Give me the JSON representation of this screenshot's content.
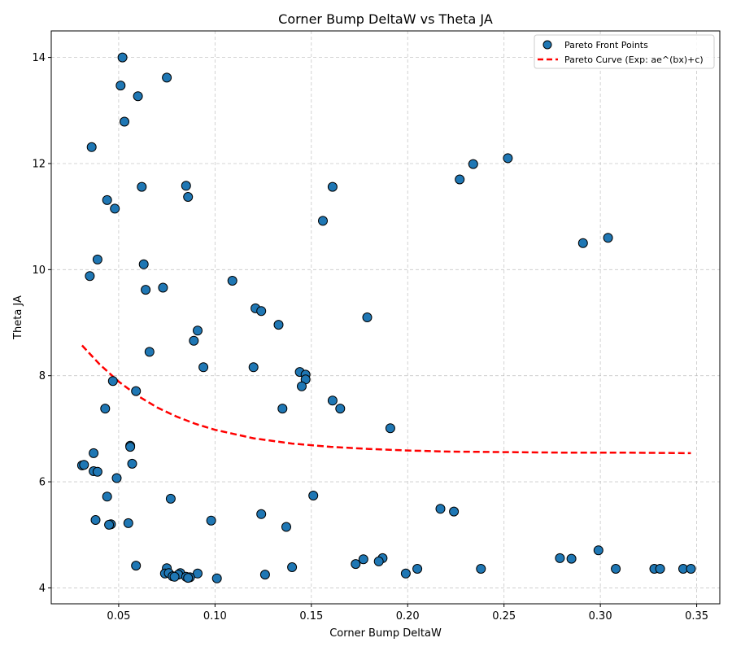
{
  "chart_data": {
    "type": "scatter",
    "title": "Corner Bump DeltaW vs Theta JA",
    "xlabel": "Corner Bump DeltaW",
    "ylabel": "Theta JA",
    "xlim": [
      0.015,
      0.362
    ],
    "ylim": [
      3.7,
      14.5
    ],
    "xticks": [
      0.05,
      0.1,
      0.15,
      0.2,
      0.25,
      0.3,
      0.35
    ],
    "xtick_labels": [
      "0.05",
      "0.10",
      "0.15",
      "0.20",
      "0.25",
      "0.30",
      "0.35"
    ],
    "yticks": [
      4,
      6,
      8,
      10,
      12,
      14
    ],
    "ytick_labels": [
      "4",
      "6",
      "8",
      "10",
      "12",
      "14"
    ],
    "grid": true,
    "legend_position": "top-right",
    "colors": {
      "points": "#1f77b4",
      "curve": "#ff0000"
    },
    "series": [
      {
        "name": "Pareto Front Points",
        "kind": "scatter",
        "points": [
          [
            0.052,
            14.0
          ],
          [
            0.075,
            13.62
          ],
          [
            0.051,
            13.47
          ],
          [
            0.06,
            13.27
          ],
          [
            0.053,
            12.79
          ],
          [
            0.036,
            12.31
          ],
          [
            0.252,
            12.1
          ],
          [
            0.234,
            11.99
          ],
          [
            0.227,
            11.7
          ],
          [
            0.062,
            11.56
          ],
          [
            0.085,
            11.58
          ],
          [
            0.161,
            11.56
          ],
          [
            0.086,
            11.37
          ],
          [
            0.044,
            11.31
          ],
          [
            0.048,
            11.15
          ],
          [
            0.156,
            10.92
          ],
          [
            0.304,
            10.6
          ],
          [
            0.291,
            10.5
          ],
          [
            0.039,
            10.19
          ],
          [
            0.063,
            10.1
          ],
          [
            0.035,
            9.88
          ],
          [
            0.109,
            9.79
          ],
          [
            0.073,
            9.66
          ],
          [
            0.064,
            9.62
          ],
          [
            0.121,
            9.27
          ],
          [
            0.124,
            9.22
          ],
          [
            0.179,
            9.1
          ],
          [
            0.133,
            8.96
          ],
          [
            0.091,
            8.85
          ],
          [
            0.089,
            8.66
          ],
          [
            0.066,
            8.45
          ],
          [
            0.094,
            8.16
          ],
          [
            0.12,
            8.16
          ],
          [
            0.144,
            8.07
          ],
          [
            0.147,
            8.02
          ],
          [
            0.147,
            7.93
          ],
          [
            0.047,
            7.9
          ],
          [
            0.145,
            7.8
          ],
          [
            0.059,
            7.71
          ],
          [
            0.161,
            7.53
          ],
          [
            0.043,
            7.38
          ],
          [
            0.135,
            7.38
          ],
          [
            0.165,
            7.38
          ],
          [
            0.191,
            7.01
          ],
          [
            0.056,
            6.68
          ],
          [
            0.056,
            6.66
          ],
          [
            0.037,
            6.54
          ],
          [
            0.057,
            6.34
          ],
          [
            0.031,
            6.31
          ],
          [
            0.032,
            6.32
          ],
          [
            0.037,
            6.2
          ],
          [
            0.039,
            6.19
          ],
          [
            0.049,
            6.07
          ],
          [
            0.044,
            5.72
          ],
          [
            0.151,
            5.74
          ],
          [
            0.077,
            5.68
          ],
          [
            0.217,
            5.49
          ],
          [
            0.224,
            5.44
          ],
          [
            0.124,
            5.39
          ],
          [
            0.038,
            5.28
          ],
          [
            0.098,
            5.27
          ],
          [
            0.055,
            5.22
          ],
          [
            0.046,
            5.2
          ],
          [
            0.045,
            5.19
          ],
          [
            0.137,
            5.15
          ],
          [
            0.299,
            4.71
          ],
          [
            0.279,
            4.56
          ],
          [
            0.187,
            4.56
          ],
          [
            0.285,
            4.55
          ],
          [
            0.177,
            4.54
          ],
          [
            0.185,
            4.5
          ],
          [
            0.173,
            4.45
          ],
          [
            0.059,
            4.42
          ],
          [
            0.14,
            4.39
          ],
          [
            0.075,
            4.37
          ],
          [
            0.205,
            4.36
          ],
          [
            0.238,
            4.36
          ],
          [
            0.308,
            4.36
          ],
          [
            0.328,
            4.36
          ],
          [
            0.331,
            4.36
          ],
          [
            0.343,
            4.36
          ],
          [
            0.347,
            4.36
          ],
          [
            0.074,
            4.27
          ],
          [
            0.076,
            4.28
          ],
          [
            0.082,
            4.28
          ],
          [
            0.091,
            4.27
          ],
          [
            0.199,
            4.27
          ],
          [
            0.081,
            4.25
          ],
          [
            0.126,
            4.25
          ],
          [
            0.078,
            4.22
          ],
          [
            0.079,
            4.21
          ],
          [
            0.085,
            4.21
          ],
          [
            0.087,
            4.2
          ],
          [
            0.086,
            4.19
          ],
          [
            0.101,
            4.18
          ]
        ]
      },
      {
        "name": "Pareto Curve (Exp: ae^(bx)+c)",
        "kind": "line",
        "style": "dashed",
        "x_range": [
          0.031,
          0.347
        ],
        "points": [
          [
            0.031,
            8.57
          ],
          [
            0.04,
            8.22
          ],
          [
            0.05,
            7.89
          ],
          [
            0.06,
            7.62
          ],
          [
            0.07,
            7.4
          ],
          [
            0.08,
            7.23
          ],
          [
            0.09,
            7.09
          ],
          [
            0.1,
            6.98
          ],
          [
            0.12,
            6.82
          ],
          [
            0.14,
            6.72
          ],
          [
            0.16,
            6.66
          ],
          [
            0.18,
            6.62
          ],
          [
            0.2,
            6.59
          ],
          [
            0.22,
            6.57
          ],
          [
            0.25,
            6.56
          ],
          [
            0.28,
            6.55
          ],
          [
            0.31,
            6.55
          ],
          [
            0.347,
            6.54
          ]
        ]
      }
    ]
  }
}
